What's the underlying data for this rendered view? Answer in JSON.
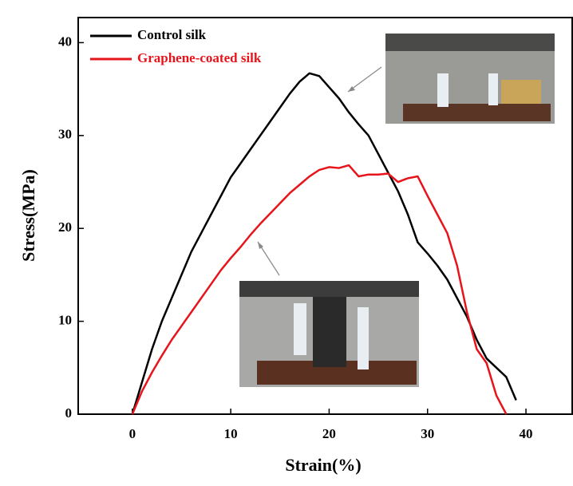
{
  "chart_data": {
    "type": "line",
    "x_label": "Strain(%)",
    "y_label": "Stress(MPa)",
    "x": [
      0,
      1,
      2,
      3,
      4,
      5,
      6,
      7,
      8,
      9,
      10,
      11,
      12,
      13,
      14,
      15,
      16,
      17,
      18,
      19,
      20,
      21,
      22,
      23,
      24,
      25,
      26,
      27,
      28,
      29,
      30,
      31,
      32,
      33,
      34,
      35,
      36,
      37,
      38,
      39,
      40
    ],
    "series": [
      {
        "name": "Control silk",
        "color": "#000000",
        "values": [
          0,
          3.5,
          7,
          10,
          12.5,
          15,
          17.5,
          19.5,
          21.5,
          23.5,
          25.5,
          27,
          28.5,
          30,
          31.5,
          33,
          34.5,
          35.8,
          36.7,
          36.4,
          35.2,
          34,
          32.5,
          31.2,
          30,
          28,
          26,
          24,
          21.5,
          18.5,
          17.3,
          16,
          14.5,
          12.5,
          10.5,
          8,
          6,
          5,
          4,
          1.5,
          null
        ]
      },
      {
        "name": "Graphene-coated silk",
        "color": "#e8141b",
        "values": [
          0,
          2.5,
          4.5,
          6.3,
          8,
          9.5,
          11,
          12.5,
          14,
          15.5,
          16.8,
          18,
          19.3,
          20.5,
          21.6,
          22.7,
          23.8,
          24.7,
          25.6,
          26.3,
          26.6,
          26.5,
          26.8,
          25.6,
          25.8,
          25.8,
          25.9,
          25,
          25.4,
          25.6,
          23.5,
          21.5,
          19.5,
          16,
          11,
          7,
          5.5,
          2,
          0,
          null,
          null
        ]
      }
    ],
    "xlim": [
      -5.5,
      44.7
    ],
    "ylim": [
      0,
      42.7
    ],
    "xticks": [
      0,
      10,
      20,
      30,
      40
    ],
    "yticks": [
      0,
      10,
      20,
      30,
      40
    ]
  }
}
